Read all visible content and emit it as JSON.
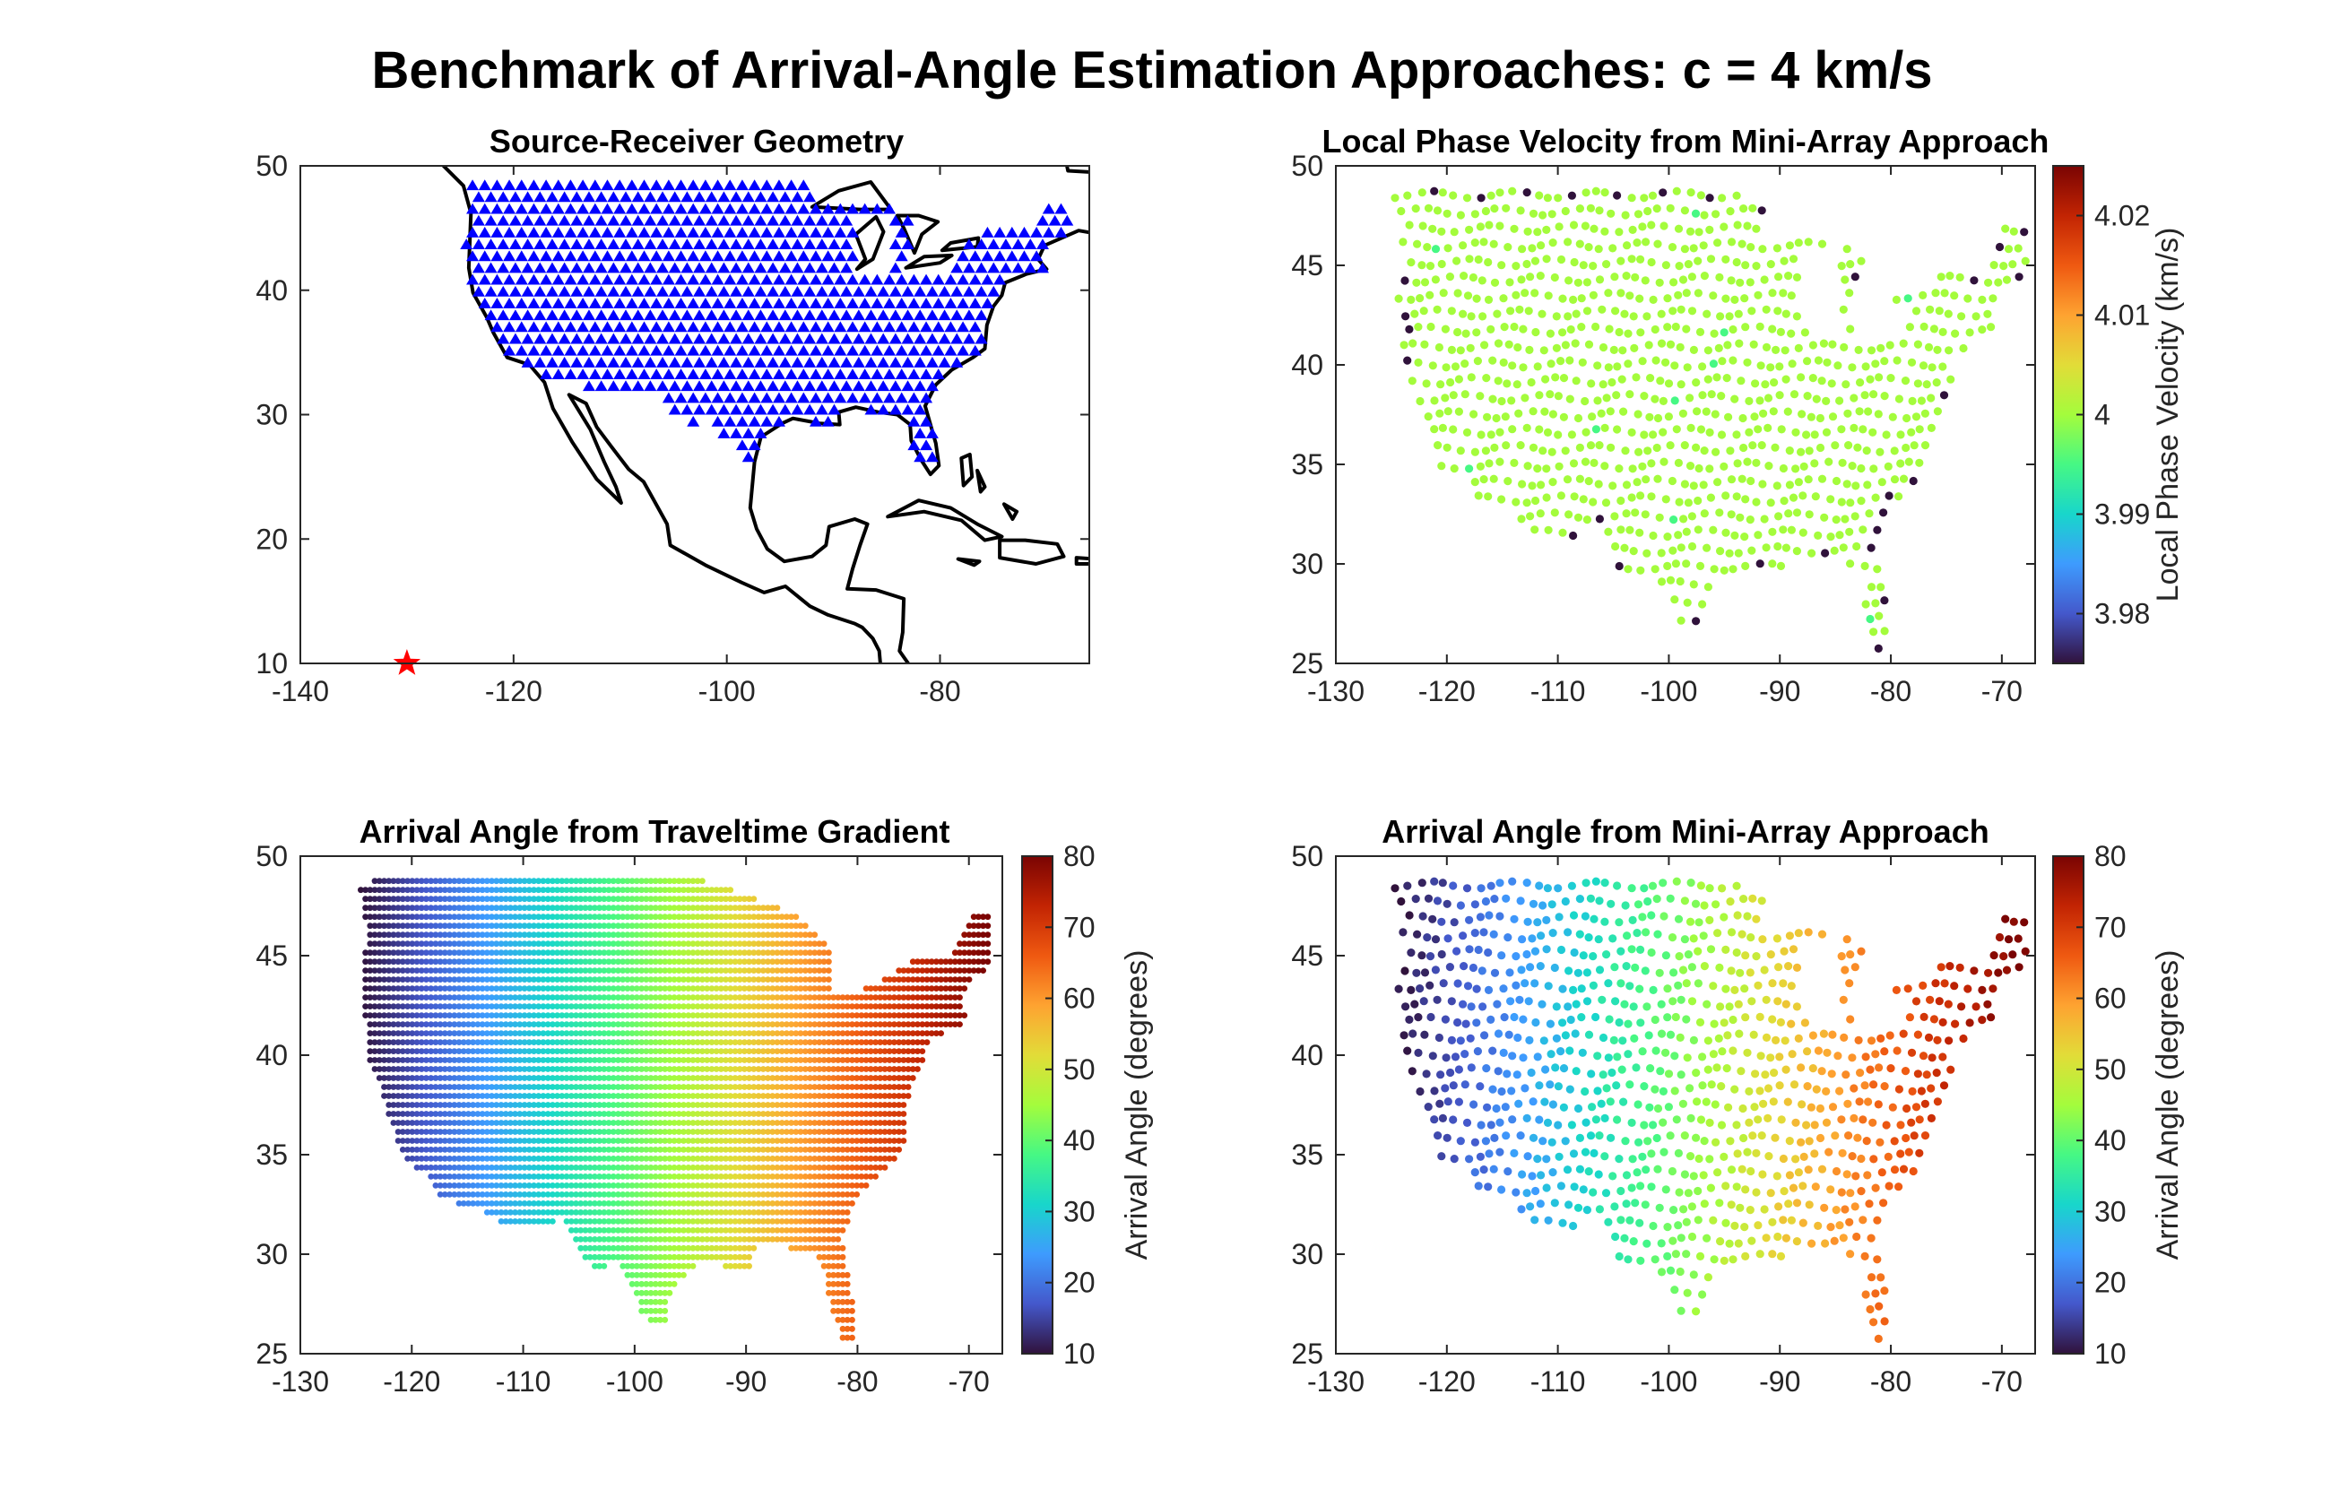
{
  "figure_title": "Benchmark of Arrival-Angle Estimation Approaches: c = 4 km/s",
  "chart_data": [
    {
      "id": "geometry",
      "type": "scatter",
      "title": "Source-Receiver Geometry",
      "xlabel": "",
      "ylabel": "",
      "xlim": [
        -140,
        -66
      ],
      "ylim": [
        10,
        50
      ],
      "xticks": [
        -140,
        -120,
        -100,
        -80
      ],
      "yticks": [
        10,
        20,
        30,
        40,
        50
      ],
      "source": {
        "x": -130,
        "y": 10,
        "marker": "star",
        "color": "#ff0000"
      },
      "receivers": {
        "marker": "triangle",
        "color": "#0000ff",
        "region": "contiguous United States station grid"
      },
      "coastline": true,
      "grid": false
    },
    {
      "id": "local-velocity",
      "type": "scatter",
      "title": "Local Phase Velocity from Mini-Array Approach",
      "xlim": [
        -130,
        -67
      ],
      "ylim": [
        25,
        50
      ],
      "xticks": [
        -130,
        -120,
        -110,
        -100,
        -90,
        -80,
        -70
      ],
      "yticks": [
        25,
        30,
        35,
        40,
        45,
        50
      ],
      "colorbar": {
        "label": "Local Phase Velocity (km/s)",
        "min": 3.975,
        "max": 4.025,
        "ticks": [
          "3.98",
          "3.99",
          "4",
          "4.01",
          "4.02"
        ],
        "colormap": "turbo"
      },
      "dominant_value": 4.0,
      "outlier_value": 3.975,
      "grid": false
    },
    {
      "id": "angle-traveltime",
      "type": "scatter",
      "title": "Arrival Angle from Traveltime Gradient",
      "xlim": [
        -130,
        -67
      ],
      "ylim": [
        25,
        50
      ],
      "xticks": [
        -130,
        -120,
        -110,
        -100,
        -90,
        -80,
        -70
      ],
      "yticks": [
        25,
        30,
        35,
        40,
        45,
        50
      ],
      "colorbar": {
        "label": "Arrival Angle (degrees)",
        "min": 10,
        "max": 80,
        "ticks": [
          "10",
          "20",
          "30",
          "40",
          "50",
          "60",
          "70",
          "80"
        ],
        "colormap": "turbo"
      },
      "value_range": [
        10,
        80
      ],
      "grid": false
    },
    {
      "id": "angle-miniarray",
      "type": "scatter",
      "title": "Arrival Angle from Mini-Array Approach",
      "xlim": [
        -130,
        -67
      ],
      "ylim": [
        25,
        50
      ],
      "xticks": [
        -130,
        -120,
        -110,
        -100,
        -90,
        -80,
        -70
      ],
      "yticks": [
        25,
        30,
        35,
        40,
        45,
        50
      ],
      "colorbar": {
        "label": "Arrival Angle (degrees)",
        "min": 10,
        "max": 80,
        "ticks": [
          "10",
          "20",
          "30",
          "40",
          "50",
          "60",
          "70",
          "80"
        ],
        "colormap": "turbo"
      },
      "value_range": [
        10,
        80
      ],
      "grid": false
    }
  ]
}
